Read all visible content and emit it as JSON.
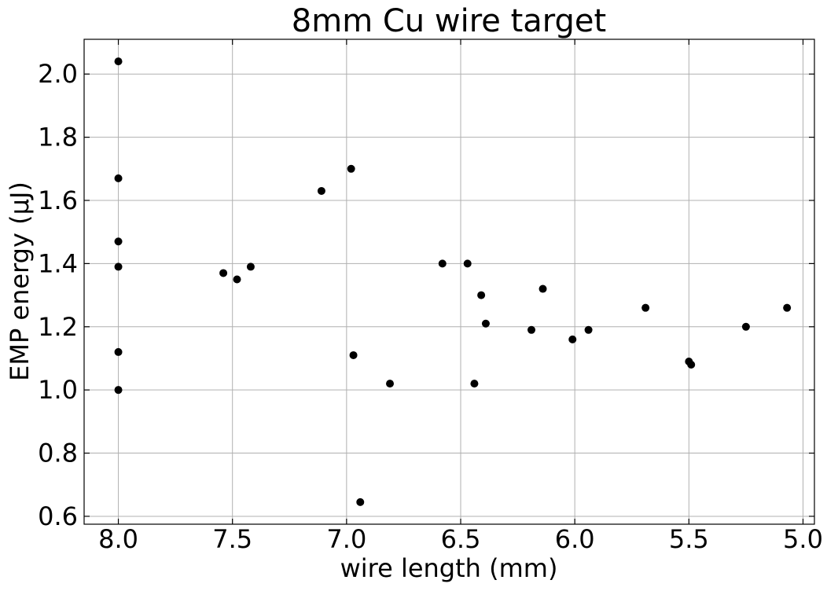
{
  "chart_data": {
    "type": "scatter",
    "title": "8mm Cu wire target",
    "xlabel": "wire length (mm)",
    "ylabel": "EMP energy (µJ)",
    "xlim": [
      8.15,
      4.95
    ],
    "ylim": [
      0.575,
      2.11
    ],
    "x_inverted": true,
    "xticks": [
      8.0,
      7.5,
      7.0,
      6.5,
      6.0,
      5.5,
      5.0
    ],
    "xtick_labels": [
      "8.0",
      "7.5",
      "7.0",
      "6.5",
      "6.0",
      "5.5",
      "5.0"
    ],
    "yticks": [
      0.6,
      0.8,
      1.0,
      1.2,
      1.4,
      1.6,
      1.8,
      2.0
    ],
    "ytick_labels": [
      "0.6",
      "0.8",
      "1.0",
      "1.2",
      "1.4",
      "1.6",
      "1.8",
      "2.0"
    ],
    "grid": true,
    "marker_color": "#000000",
    "points": [
      {
        "x": 8.0,
        "y": 2.04
      },
      {
        "x": 8.0,
        "y": 1.67
      },
      {
        "x": 8.0,
        "y": 1.47
      },
      {
        "x": 8.0,
        "y": 1.39
      },
      {
        "x": 8.0,
        "y": 1.12
      },
      {
        "x": 8.0,
        "y": 1.0
      },
      {
        "x": 7.54,
        "y": 1.37
      },
      {
        "x": 7.48,
        "y": 1.35
      },
      {
        "x": 7.42,
        "y": 1.39
      },
      {
        "x": 7.11,
        "y": 1.63
      },
      {
        "x": 6.98,
        "y": 1.7
      },
      {
        "x": 6.97,
        "y": 1.11
      },
      {
        "x": 6.94,
        "y": 0.645
      },
      {
        "x": 6.81,
        "y": 1.02
      },
      {
        "x": 6.58,
        "y": 1.4
      },
      {
        "x": 6.47,
        "y": 1.4
      },
      {
        "x": 6.44,
        "y": 1.02
      },
      {
        "x": 6.41,
        "y": 1.3
      },
      {
        "x": 6.39,
        "y": 1.21
      },
      {
        "x": 6.19,
        "y": 1.19
      },
      {
        "x": 6.14,
        "y": 1.32
      },
      {
        "x": 6.01,
        "y": 1.16
      },
      {
        "x": 5.94,
        "y": 1.19
      },
      {
        "x": 5.69,
        "y": 1.26
      },
      {
        "x": 5.5,
        "y": 1.09
      },
      {
        "x": 5.49,
        "y": 1.08
      },
      {
        "x": 5.25,
        "y": 1.2
      },
      {
        "x": 5.07,
        "y": 1.26
      }
    ]
  }
}
